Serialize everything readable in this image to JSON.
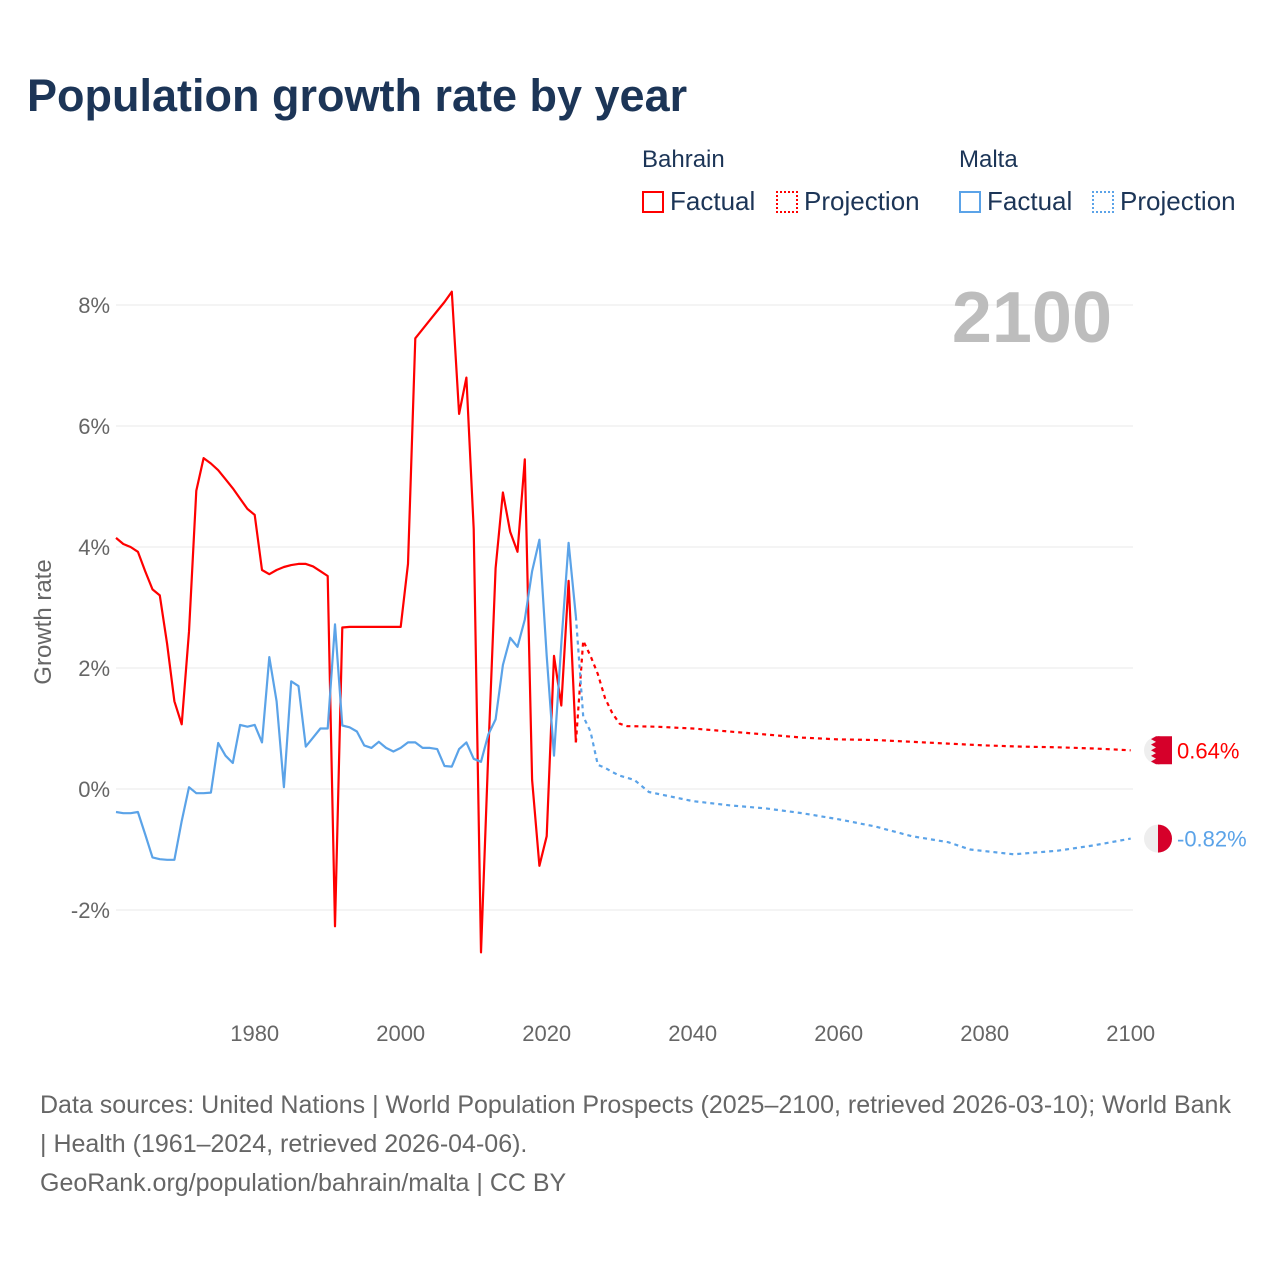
{
  "title": "Population growth rate by year",
  "legend": {
    "groups": [
      {
        "name": "Bahrain",
        "factual": "Factual",
        "projection": "Projection",
        "color": "#ff0000"
      },
      {
        "name": "Malta",
        "factual": "Factual",
        "projection": "Projection",
        "color": "#5ba3e8"
      }
    ]
  },
  "year_label": "2100",
  "footer": {
    "sources": "Data sources: United Nations | World Population Prospects (2025–2100, retrieved 2026-03-10); World Bank | Health (1961–2024, retrieved 2026-04-06).",
    "credit": "GeoRank.org/population/bahrain/malta | CC BY"
  },
  "chart_data": {
    "type": "line",
    "title": "Population growth rate by year",
    "xlabel": "",
    "ylabel": "Growth rate",
    "xlim": [
      1961,
      2100
    ],
    "ylim": [
      -3.3,
      8.6
    ],
    "x_ticks": [
      1980,
      2000,
      2020,
      2040,
      2060,
      2080,
      2100
    ],
    "x_tick_labels": [
      "1980",
      "2000",
      "2020",
      "2040",
      "2060",
      "2080",
      "2100"
    ],
    "y_ticks": [
      -2,
      0,
      2,
      4,
      6,
      8
    ],
    "y_tick_labels": [
      "-2%",
      "0%",
      "2%",
      "4%",
      "6%",
      "8%"
    ],
    "grid": true,
    "legend_position": "top-right",
    "series": [
      {
        "name": "Bahrain Factual",
        "color": "#ff0000",
        "dashed": false,
        "x": [
          1961,
          1962,
          1963,
          1964,
          1965,
          1966,
          1967,
          1968,
          1969,
          1970,
          1971,
          1972,
          1973,
          1974,
          1975,
          1976,
          1977,
          1978,
          1979,
          1980,
          1981,
          1982,
          1983,
          1984,
          1985,
          1986,
          1987,
          1988,
          1989,
          1990,
          1991,
          1992,
          1993,
          1994,
          1995,
          1996,
          1997,
          1998,
          1999,
          2000,
          2001,
          2002,
          2003,
          2004,
          2005,
          2006,
          2007,
          2008,
          2009,
          2010,
          2011,
          2012,
          2013,
          2014,
          2015,
          2016,
          2017,
          2018,
          2019,
          2020,
          2021,
          2022,
          2023,
          2024
        ],
        "y": [
          4.15,
          4.05,
          4.0,
          3.92,
          3.6,
          3.3,
          3.2,
          2.4,
          1.45,
          1.07,
          2.6,
          4.93,
          5.47,
          5.38,
          5.27,
          5.12,
          4.97,
          4.8,
          4.63,
          4.53,
          3.62,
          3.55,
          3.62,
          3.67,
          3.7,
          3.72,
          3.72,
          3.68,
          3.6,
          3.52,
          -2.27,
          2.67,
          2.68,
          2.68,
          2.68,
          2.68,
          2.68,
          2.68,
          2.68,
          2.68,
          3.72,
          7.45,
          7.6,
          7.75,
          7.9,
          8.05,
          8.22,
          6.2,
          6.8,
          4.3,
          -2.7,
          0.6,
          3.65,
          4.9,
          4.25,
          3.92,
          5.45,
          0.15,
          -1.27,
          -0.78,
          2.2,
          1.38,
          3.44,
          0.77
        ]
      },
      {
        "name": "Bahrain Projection",
        "color": "#ff0000",
        "dashed": true,
        "x": [
          2024,
          2025,
          2026,
          2027,
          2028,
          2029,
          2030,
          2031,
          2035,
          2040,
          2045,
          2050,
          2055,
          2060,
          2065,
          2070,
          2075,
          2080,
          2085,
          2090,
          2095,
          2100
        ],
        "y": [
          0.77,
          2.45,
          2.2,
          1.9,
          1.5,
          1.25,
          1.08,
          1.04,
          1.03,
          1.0,
          0.95,
          0.9,
          0.85,
          0.82,
          0.81,
          0.78,
          0.75,
          0.72,
          0.7,
          0.69,
          0.67,
          0.64
        ]
      },
      {
        "name": "Malta Factual",
        "color": "#5ba3e8",
        "dashed": false,
        "x": [
          1961,
          1962,
          1963,
          1964,
          1965,
          1966,
          1967,
          1968,
          1969,
          1970,
          1971,
          1972,
          1973,
          1974,
          1975,
          1976,
          1977,
          1978,
          1979,
          1980,
          1981,
          1982,
          1983,
          1984,
          1985,
          1986,
          1987,
          1988,
          1989,
          1990,
          1991,
          1992,
          1993,
          1994,
          1995,
          1996,
          1997,
          1998,
          1999,
          2000,
          2001,
          2002,
          2003,
          2004,
          2005,
          2006,
          2007,
          2008,
          2009,
          2010,
          2011,
          2012,
          2013,
          2014,
          2015,
          2016,
          2017,
          2018,
          2019,
          2020,
          2021,
          2022,
          2023,
          2024
        ],
        "y": [
          -0.38,
          -0.4,
          -0.4,
          -0.38,
          -0.75,
          -1.13,
          -1.16,
          -1.17,
          -1.17,
          -0.53,
          0.03,
          -0.07,
          -0.07,
          -0.06,
          0.76,
          0.55,
          0.43,
          1.06,
          1.03,
          1.06,
          0.77,
          2.18,
          1.45,
          0.03,
          1.78,
          1.7,
          0.7,
          0.85,
          1.0,
          1.0,
          2.72,
          1.05,
          1.02,
          0.95,
          0.72,
          0.68,
          0.78,
          0.68,
          0.62,
          0.68,
          0.77,
          0.77,
          0.68,
          0.68,
          0.66,
          0.38,
          0.37,
          0.66,
          0.77,
          0.5,
          0.45,
          0.9,
          1.15,
          2.05,
          2.5,
          2.35,
          2.8,
          3.6,
          4.12,
          2.2,
          0.55,
          2.4,
          4.07,
          2.85
        ]
      },
      {
        "name": "Malta Projection",
        "color": "#5ba3e8",
        "dashed": true,
        "x": [
          2024,
          2025,
          2026,
          2027,
          2028,
          2029,
          2030,
          2032,
          2034,
          2040,
          2045,
          2050,
          2055,
          2060,
          2065,
          2070,
          2075,
          2078,
          2084,
          2090,
          2095,
          2100
        ],
        "y": [
          2.85,
          1.2,
          0.95,
          0.4,
          0.35,
          0.28,
          0.22,
          0.15,
          -0.05,
          -0.2,
          -0.27,
          -0.32,
          -0.4,
          -0.5,
          -0.62,
          -0.78,
          -0.88,
          -1.0,
          -1.08,
          -1.02,
          -0.93,
          -0.82
        ]
      }
    ],
    "end_labels": [
      {
        "series": "Bahrain",
        "text": "0.64%",
        "value": 0.64,
        "color": "#ff0000"
      },
      {
        "series": "Malta",
        "text": "-0.82%",
        "value": -0.82,
        "color": "#5ba3e8"
      }
    ]
  }
}
